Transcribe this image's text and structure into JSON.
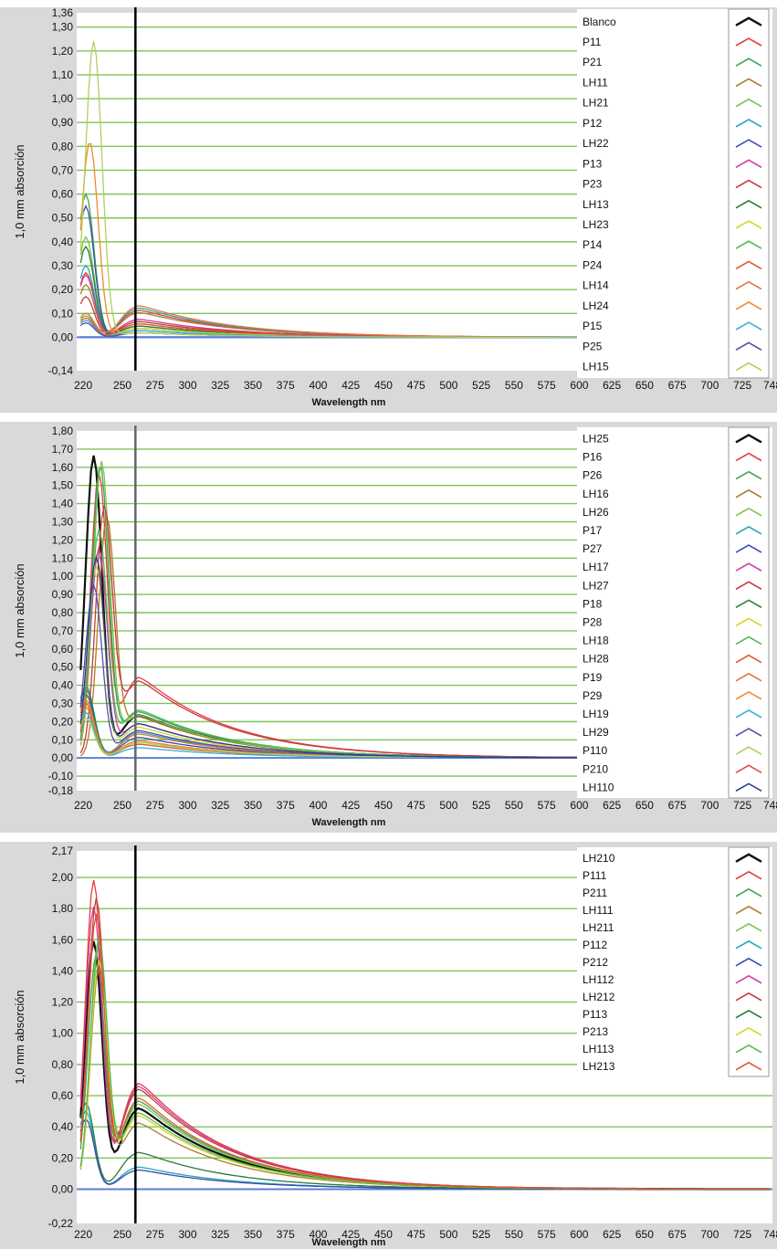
{
  "colors": {
    "grid": "#7fc45a",
    "zero_line": "#5b7fd6",
    "panel_bg": "#d9d9d9",
    "plot_bg": "#ffffff",
    "legend_bg": "#ffffff",
    "legend_palette": [
      "#111111",
      "#e53b3b",
      "#3aa655",
      "#b07a2a",
      "#7cc24a",
      "#2aa6b8",
      "#3a4bb0",
      "#d03ca0",
      "#c8393e",
      "#2a7a3a",
      "#d6d62a",
      "#56b656",
      "#e0582a",
      "#e0783a",
      "#f08a2a",
      "#33aee0",
      "#5a4bb0",
      "#b0d060",
      "#e04a4a",
      "#2a3a90",
      "#d040c0"
    ]
  },
  "chart_data": [
    {
      "type": "line",
      "ylabel": "1,0 mm absorción",
      "xlabel": "Wavelength nm",
      "xlim": [
        215,
        748
      ],
      "ylim": [
        -0.14,
        1.36
      ],
      "x_ticks": [
        "220",
        "250",
        "275",
        "300",
        "325",
        "350",
        "375",
        "400",
        "425",
        "450",
        "475",
        "500",
        "525",
        "550",
        "575",
        "600",
        "625",
        "650",
        "675",
        "700",
        "725",
        "748"
      ],
      "y_ticks": [
        "1,36",
        "1,30",
        "1,20",
        "1,10",
        "1,00",
        "0,90",
        "0,80",
        "0,70",
        "0,60",
        "0,50",
        "0,40",
        "0,30",
        "0,20",
        "0,10",
        "0,00",
        "-0,14"
      ],
      "y_tick_values": [
        1.36,
        1.3,
        1.2,
        1.1,
        1.0,
        0.9,
        0.8,
        0.7,
        0.6,
        0.5,
        0.4,
        0.3,
        0.2,
        0.1,
        0.0,
        -0.14
      ],
      "grid_y": [
        1.3,
        1.2,
        1.1,
        1.0,
        0.9,
        0.8,
        0.7,
        0.6,
        0.5,
        0.4,
        0.3,
        0.2,
        0.1,
        0.0
      ],
      "vline_x": 260,
      "legend_position": "right",
      "series": [
        {
          "name": "Blanco",
          "peak": 0.0,
          "peakx": 230,
          "base": 0.0,
          "tail": 0.0
        },
        {
          "name": "P11",
          "peak": 0.27,
          "peakx": 222,
          "base": 0.12,
          "tail": 0.1
        },
        {
          "name": "P21",
          "peak": 0.6,
          "peakx": 222,
          "base": 0.05,
          "tail": 0.04
        },
        {
          "name": "LH11",
          "peak": 0.22,
          "peakx": 222,
          "base": 0.11,
          "tail": 0.08
        },
        {
          "name": "LH21",
          "peak": 0.42,
          "peakx": 222,
          "base": 0.06,
          "tail": 0.05
        },
        {
          "name": "P12",
          "peak": 0.3,
          "peakx": 222,
          "base": 0.13,
          "tail": 0.1
        },
        {
          "name": "LH22",
          "peak": 0.55,
          "peakx": 222,
          "base": 0.04,
          "tail": 0.03
        },
        {
          "name": "P13",
          "peak": 0.26,
          "peakx": 222,
          "base": 0.08,
          "tail": 0.06
        },
        {
          "name": "P23",
          "peak": 0.17,
          "peakx": 222,
          "base": 0.07,
          "tail": 0.05
        },
        {
          "name": "LH13",
          "peak": 0.38,
          "peakx": 222,
          "base": 0.05,
          "tail": 0.04
        },
        {
          "name": "LH23",
          "peak": 0.1,
          "peakx": 222,
          "base": 0.04,
          "tail": 0.03
        },
        {
          "name": "P14",
          "peak": 0.09,
          "peakx": 222,
          "base": 0.03,
          "tail": 0.02
        },
        {
          "name": "P24",
          "peak": 0.08,
          "peakx": 222,
          "base": 0.06,
          "tail": 0.04
        },
        {
          "name": "LH14",
          "peak": 0.1,
          "peakx": 222,
          "base": 0.14,
          "tail": 0.12
        },
        {
          "name": "LH24",
          "peak": 0.82,
          "peakx": 225,
          "base": 0.02,
          "tail": 0.01
        },
        {
          "name": "P15",
          "peak": 0.07,
          "peakx": 222,
          "base": 0.03,
          "tail": 0.02
        },
        {
          "name": "P25",
          "peak": 0.06,
          "peakx": 222,
          "base": 0.02,
          "tail": 0.02
        },
        {
          "name": "LH15",
          "peak": 1.24,
          "peakx": 228,
          "base": 0.02,
          "tail": 0.01
        }
      ]
    },
    {
      "type": "line",
      "ylabel": "1,0 mm absorción",
      "xlabel": "Wavelength nm",
      "xlim": [
        215,
        748
      ],
      "ylim": [
        -0.18,
        1.8
      ],
      "x_ticks": [
        "220",
        "250",
        "275",
        "300",
        "325",
        "350",
        "375",
        "400",
        "425",
        "450",
        "475",
        "500",
        "525",
        "550",
        "575",
        "600",
        "625",
        "650",
        "675",
        "700",
        "725",
        "748"
      ],
      "y_ticks": [
        "1,80",
        "1,70",
        "1,60",
        "1,50",
        "1,40",
        "1,30",
        "1,20",
        "1,10",
        "1,00",
        "0,90",
        "0,80",
        "0,70",
        "0,60",
        "0,50",
        "0,40",
        "0,30",
        "0,20",
        "0,10",
        "0,00",
        "-0,10",
        "-0,18"
      ],
      "y_tick_values": [
        1.8,
        1.7,
        1.6,
        1.5,
        1.4,
        1.3,
        1.2,
        1.1,
        1.0,
        0.9,
        0.8,
        0.7,
        0.6,
        0.5,
        0.4,
        0.3,
        0.2,
        0.1,
        0.0,
        -0.1,
        -0.18
      ],
      "grid_y": [
        1.7,
        1.6,
        1.5,
        1.4,
        1.3,
        1.2,
        1.1,
        1.0,
        0.9,
        0.8,
        0.7,
        0.6,
        0.5,
        0.4,
        0.3,
        0.2,
        0.1,
        0.0,
        -0.1
      ],
      "vline_x": 260,
      "legend_position": "right",
      "series": [
        {
          "name": "LH25",
          "peak": 1.66,
          "peakx": 228,
          "base": 0.25,
          "tail": 0.18
        },
        {
          "name": "P16",
          "peak": 1.55,
          "peakx": 232,
          "base": 0.47,
          "tail": 0.4
        },
        {
          "name": "P26",
          "peak": 1.6,
          "peakx": 233,
          "base": 0.27,
          "tail": 0.22
        },
        {
          "name": "LH16",
          "peak": 1.3,
          "peakx": 238,
          "base": 0.24,
          "tail": 0.2
        },
        {
          "name": "LH26",
          "peak": 1.62,
          "peakx": 234,
          "base": 0.25,
          "tail": 0.22
        },
        {
          "name": "P17",
          "peak": 0.4,
          "peakx": 222,
          "base": 0.15,
          "tail": 0.1
        },
        {
          "name": "P27",
          "peak": 0.35,
          "peakx": 222,
          "base": 0.12,
          "tail": 0.08
        },
        {
          "name": "LH17",
          "peak": 1.15,
          "peakx": 232,
          "base": 0.2,
          "tail": 0.15
        },
        {
          "name": "LH27",
          "peak": 1.35,
          "peakx": 236,
          "base": 0.45,
          "tail": 0.38
        },
        {
          "name": "P18",
          "peak": 0.38,
          "peakx": 222,
          "base": 0.1,
          "tail": 0.07
        },
        {
          "name": "P28",
          "peak": 1.05,
          "peakx": 230,
          "base": 0.18,
          "tail": 0.12
        },
        {
          "name": "LH18",
          "peak": 1.25,
          "peakx": 232,
          "base": 0.28,
          "tail": 0.24
        },
        {
          "name": "LH28",
          "peak": 0.3,
          "peakx": 222,
          "base": 0.08,
          "tail": 0.06
        },
        {
          "name": "P19",
          "peak": 0.28,
          "peakx": 222,
          "base": 0.14,
          "tail": 0.1
        },
        {
          "name": "P29",
          "peak": 0.32,
          "peakx": 222,
          "base": 0.1,
          "tail": 0.07
        },
        {
          "name": "LH19",
          "peak": 0.25,
          "peakx": 222,
          "base": 0.06,
          "tail": 0.04
        },
        {
          "name": "LH29",
          "peak": 0.95,
          "peakx": 228,
          "base": 0.16,
          "tail": 0.12
        },
        {
          "name": "P110",
          "peak": 0.22,
          "peakx": 222,
          "base": 0.09,
          "tail": 0.06
        },
        {
          "name": "P210",
          "peak": 0.0,
          "peakx": 230,
          "base": 0.0,
          "tail": 0.0
        },
        {
          "name": "LH110",
          "peak": 1.1,
          "peakx": 230,
          "base": 0.2,
          "tail": 0.16
        }
      ]
    },
    {
      "type": "line",
      "ylabel": "1,0 mm absorción",
      "xlabel": "Wavelength nm",
      "xlim": [
        215,
        748
      ],
      "ylim": [
        -0.22,
        2.17
      ],
      "x_ticks": [
        "220",
        "250",
        "275",
        "300",
        "325",
        "350",
        "375",
        "400",
        "425",
        "450",
        "475",
        "500",
        "525",
        "550",
        "575",
        "600",
        "625",
        "650",
        "675",
        "700",
        "725",
        "748"
      ],
      "y_ticks": [
        "2,17",
        "2,00",
        "1,80",
        "1,60",
        "1,40",
        "1,20",
        "1,00",
        "0,80",
        "0,60",
        "0,40",
        "0,20",
        "0,00",
        "-0,22"
      ],
      "y_tick_values": [
        2.17,
        2.0,
        1.8,
        1.6,
        1.4,
        1.2,
        1.0,
        0.8,
        0.6,
        0.4,
        0.2,
        0.0,
        -0.22
      ],
      "grid_y": [
        2.0,
        1.8,
        1.6,
        1.4,
        1.2,
        1.0,
        0.8,
        0.6,
        0.4,
        0.2,
        0.0
      ],
      "vline_x": 260,
      "legend_position": "top-right",
      "series": [
        {
          "name": "LH210",
          "peak": 1.58,
          "peakx": 228,
          "base": 0.55,
          "tail": 0.5
        },
        {
          "name": "P111",
          "peak": 1.97,
          "peakx": 228,
          "base": 0.72,
          "tail": 0.66
        },
        {
          "name": "P211",
          "peak": 1.5,
          "peakx": 230,
          "base": 0.6,
          "tail": 0.52
        },
        {
          "name": "LH111",
          "peak": 1.4,
          "peakx": 232,
          "base": 0.45,
          "tail": 0.4
        },
        {
          "name": "LH211",
          "peak": 1.55,
          "peakx": 232,
          "base": 0.58,
          "tail": 0.5
        },
        {
          "name": "P112",
          "peak": 0.5,
          "peakx": 222,
          "base": 0.15,
          "tail": 0.12
        },
        {
          "name": "P212",
          "peak": 0.45,
          "peakx": 222,
          "base": 0.13,
          "tail": 0.1
        },
        {
          "name": "LH112",
          "peak": 1.8,
          "peakx": 228,
          "base": 0.7,
          "tail": 0.62
        },
        {
          "name": "LH212",
          "peak": 1.85,
          "peakx": 230,
          "base": 0.68,
          "tail": 0.6
        },
        {
          "name": "P113",
          "peak": 0.55,
          "peakx": 222,
          "base": 0.25,
          "tail": 0.22
        },
        {
          "name": "P213",
          "peak": 1.45,
          "peakx": 232,
          "base": 0.5,
          "tail": 0.44
        },
        {
          "name": "LH113",
          "peak": 1.6,
          "peakx": 232,
          "base": 0.52,
          "tail": 0.46
        },
        {
          "name": "LH213",
          "peak": 1.75,
          "peakx": 230,
          "base": 0.62,
          "tail": 0.56
        }
      ]
    }
  ]
}
